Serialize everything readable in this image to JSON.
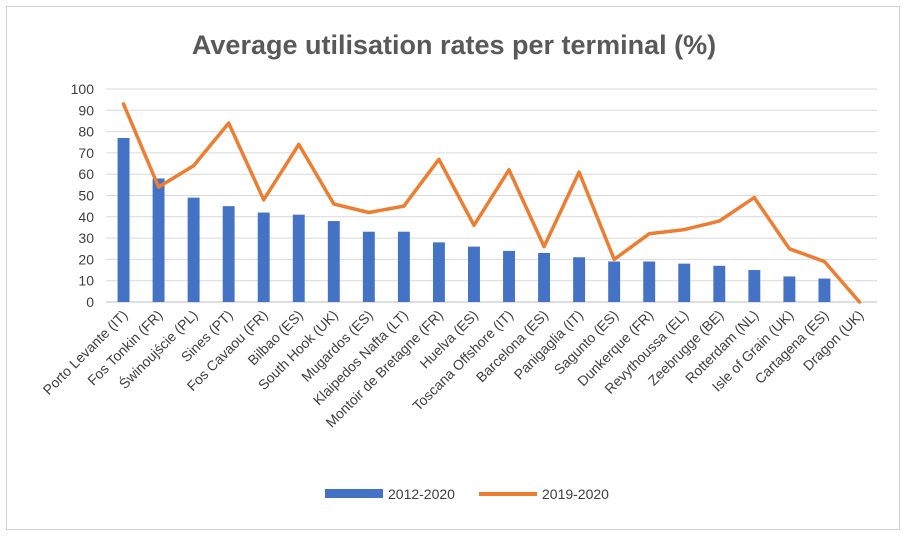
{
  "chart_data": {
    "type": "bar",
    "title": "Average utilisation rates per terminal (%)",
    "xlabel": "",
    "ylabel": "",
    "ylim": [
      0,
      100
    ],
    "yticks": [
      0,
      10,
      20,
      30,
      40,
      50,
      60,
      70,
      80,
      90,
      100
    ],
    "grid": true,
    "legend_position": "bottom",
    "categories": [
      "Porto Levante (IT)",
      "Fos Tonkin (FR)",
      "Świnoujście (PL)",
      "Sines (PT)",
      "Fos Cavaou (FR)",
      "Bilbao (ES)",
      "South Hook (UK)",
      "Mugardos (ES)",
      "Klaipedos Nafta (LT)",
      "Montoir de Bretagne (FR)",
      "Huelva (ES)",
      "Toscana Offshore (IT)",
      "Barcelona (ES)",
      "Panigaglia (IT)",
      "Sagunto (ES)",
      "Dunkerque (FR)",
      "Revythoussa (EL)",
      "Zeebrugge (BE)",
      "Rotterdam (NL)",
      "Isle of Grain (UK)",
      "Cartagena (ES)",
      "Dragon (UK)"
    ],
    "series": [
      {
        "name": "2012-2020",
        "type": "bar",
        "color": "#4472c4",
        "values": [
          77,
          58,
          49,
          45,
          42,
          41,
          38,
          33,
          33,
          28,
          26,
          24,
          23,
          21,
          19,
          19,
          18,
          17,
          15,
          12,
          11,
          0
        ]
      },
      {
        "name": "2019-2020",
        "type": "line",
        "color": "#ed7d31",
        "values": [
          93,
          54,
          64,
          84,
          48,
          74,
          46,
          42,
          45,
          67,
          36,
          62,
          26,
          61,
          20,
          32,
          34,
          38,
          49,
          25,
          19,
          0
        ]
      }
    ]
  }
}
